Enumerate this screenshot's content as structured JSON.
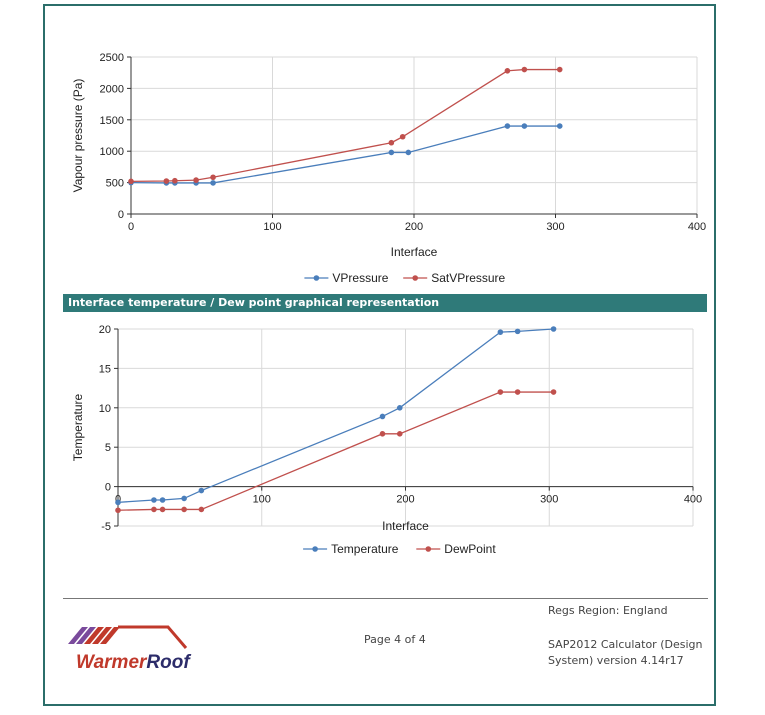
{
  "chart_data": [
    {
      "type": "line",
      "title": "",
      "xlabel": "Interface",
      "ylabel": "Vapour pressure (Pa)",
      "xlim": [
        0,
        400
      ],
      "ylim": [
        0,
        2500
      ],
      "xticks": [
        0,
        100,
        200,
        300,
        400
      ],
      "yticks": [
        0,
        500,
        1000,
        1500,
        2000,
        2500
      ],
      "grid": true,
      "legend": "bottom",
      "series": [
        {
          "name": "VPressure",
          "color": "#4a7ebb",
          "points": [
            [
              0,
              500
            ],
            [
              25,
              495
            ],
            [
              31,
              495
            ],
            [
              46,
              495
            ],
            [
              58,
              495
            ],
            [
              184,
              980
            ],
            [
              196,
              980
            ],
            [
              266,
              1400
            ],
            [
              278,
              1400
            ],
            [
              303,
              1400
            ]
          ]
        },
        {
          "name": "SatVPressure",
          "color": "#c0504d",
          "points": [
            [
              0,
              520
            ],
            [
              25,
              525
            ],
            [
              31,
              530
            ],
            [
              46,
              540
            ],
            [
              58,
              585
            ],
            [
              184,
              1135
            ],
            [
              192,
              1230
            ],
            [
              266,
              2280
            ],
            [
              278,
              2300
            ],
            [
              303,
              2300
            ]
          ]
        }
      ]
    },
    {
      "type": "line",
      "title": "",
      "xlabel": "Interface",
      "ylabel": "Temperature",
      "xlim": [
        0,
        400
      ],
      "ylim": [
        -5,
        20
      ],
      "xticks": [
        0,
        100,
        200,
        300,
        400
      ],
      "yticks": [
        -5,
        0,
        5,
        10,
        15,
        20
      ],
      "grid": true,
      "legend": "bottom",
      "series": [
        {
          "name": "Temperature",
          "color": "#4a7ebb",
          "points": [
            [
              0,
              -2
            ],
            [
              25,
              -1.7
            ],
            [
              31,
              -1.7
            ],
            [
              46,
              -1.5
            ],
            [
              58,
              -0.5
            ],
            [
              184,
              8.9
            ],
            [
              196,
              10
            ],
            [
              266,
              19.6
            ],
            [
              278,
              19.7
            ],
            [
              303,
              20
            ]
          ]
        },
        {
          "name": "DewPoint",
          "color": "#c0504d",
          "points": [
            [
              0,
              -3
            ],
            [
              25,
              -2.9
            ],
            [
              31,
              -2.9
            ],
            [
              46,
              -2.9
            ],
            [
              58,
              -2.9
            ],
            [
              184,
              6.7
            ],
            [
              196,
              6.7
            ],
            [
              266,
              12
            ],
            [
              278,
              12
            ],
            [
              303,
              12
            ]
          ]
        }
      ]
    }
  ],
  "section_heading": "Interface temperature / Dew point graphical representation",
  "footer": {
    "page": "Page 4 of 4",
    "regs_region": "Regs Region: England",
    "calculator": "SAP2012 Calculator (Design System) version 4.14r17",
    "logo_text": "WarmerRoof"
  },
  "colors": {
    "teal": "#2f7a79",
    "blue": "#4a7ebb",
    "red": "#c0504d"
  }
}
